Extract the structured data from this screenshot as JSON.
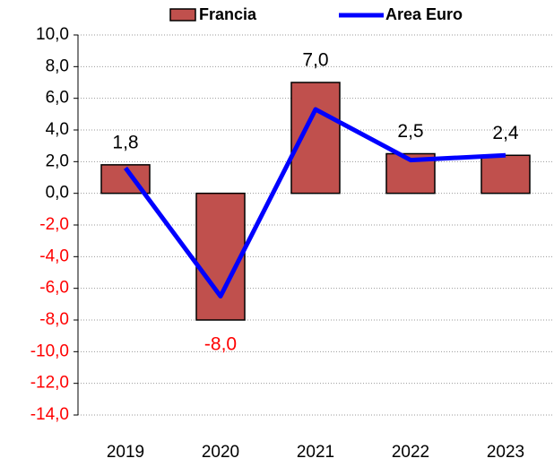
{
  "chart_data": {
    "type": "bar",
    "categories": [
      "2019",
      "2020",
      "2021",
      "2022",
      "2023"
    ],
    "series": [
      {
        "name": "Francia",
        "type": "bar",
        "color": "#c0504d",
        "values": [
          1.8,
          -8.0,
          7.0,
          2.5,
          2.4
        ],
        "value_labels": [
          "1,8",
          "-8,0",
          "7,0",
          "2,5",
          "2,4"
        ]
      },
      {
        "name": "Area Euro",
        "type": "line",
        "color": "#0000ff",
        "values": [
          1.6,
          -6.5,
          5.3,
          2.1,
          2.4
        ]
      }
    ],
    "ylim": [
      -14,
      10
    ],
    "yticks": [
      {
        "value": 10,
        "label": "10,0"
      },
      {
        "value": 8,
        "label": "8,0"
      },
      {
        "value": 6,
        "label": "6,0"
      },
      {
        "value": 4,
        "label": "4,0"
      },
      {
        "value": 2,
        "label": "2,0"
      },
      {
        "value": 0,
        "label": "0,0"
      },
      {
        "value": -2,
        "label": "-2,0"
      },
      {
        "value": -4,
        "label": "-4,0"
      },
      {
        "value": -6,
        "label": "-6,0"
      },
      {
        "value": -8,
        "label": "-8,0"
      },
      {
        "value": -10,
        "label": "-10,0"
      },
      {
        "value": -12,
        "label": "-12,0"
      },
      {
        "value": -14,
        "label": "-14,0"
      }
    ],
    "grid": true,
    "legend": "top",
    "negative_color": "#ff0000"
  }
}
